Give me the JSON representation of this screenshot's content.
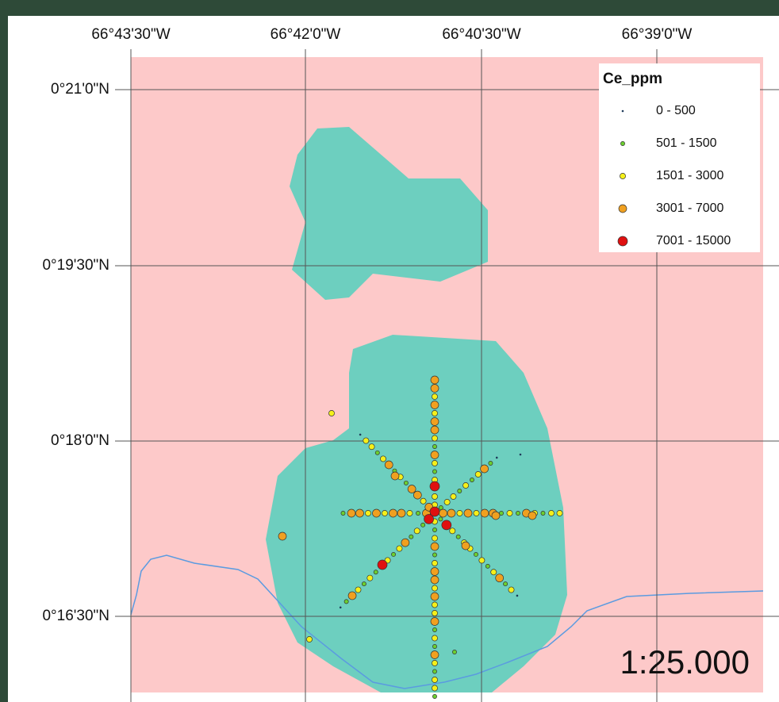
{
  "map": {
    "lon_labels": [
      "66°43'30\"W",
      "66°42'0\"W",
      "66°40'30\"W",
      "66°39'0\"W"
    ],
    "lat_labels": [
      "0°21'0\"N",
      "0°19'30\"N",
      "0°18'0\"N",
      "0°16'30\"N"
    ],
    "legend": {
      "title": "Ce_ppm",
      "items": [
        "0 - 500",
        "501 - 1500",
        "1501 - 3000",
        "3001 - 7000",
        "7001 - 15000"
      ]
    },
    "scale": "1:25.000"
  }
}
